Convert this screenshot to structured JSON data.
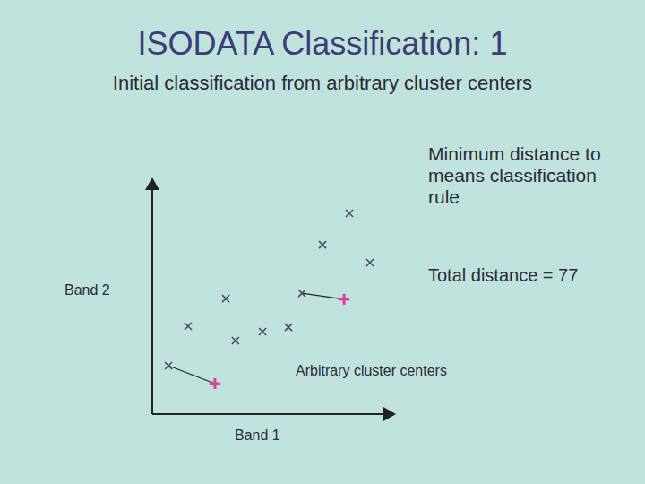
{
  "chart_data": {
    "type": "scatter",
    "title": "ISODATA Classification: 1",
    "subtitle": "Initial classification from arbitrary cluster centers",
    "x_label": "Band 1",
    "y_label": "Band 2",
    "annotations": [
      "Minimum distance to means classification rule",
      "Total distance = 77",
      "Arbitrary cluster centers"
    ],
    "xlim": [
      0,
      100
    ],
    "ylim": [
      0,
      100
    ],
    "tick_labels": false,
    "grid": false,
    "series": [
      {
        "marker": "x",
        "color": "#4a4a5a",
        "x": [
          81.5,
          70.4,
          90.0,
          61.9,
          30.4,
          14.8,
          34.4,
          45.6,
          56.3,
          6.7
        ],
        "values": [
          85.5,
          72.1,
          64.5,
          51.5,
          49.2,
          37.4,
          31.3,
          35.1,
          37.0,
          20.6
        ]
      },
      {
        "marker": "plus",
        "color": "#e03c9c",
        "x": [
          79.3,
          25.9
        ],
        "values": [
          48.9,
          13.0
        ]
      }
    ],
    "links": [
      {
        "point": 3,
        "center": 0
      },
      {
        "point": 9,
        "center": 1
      }
    ]
  }
}
